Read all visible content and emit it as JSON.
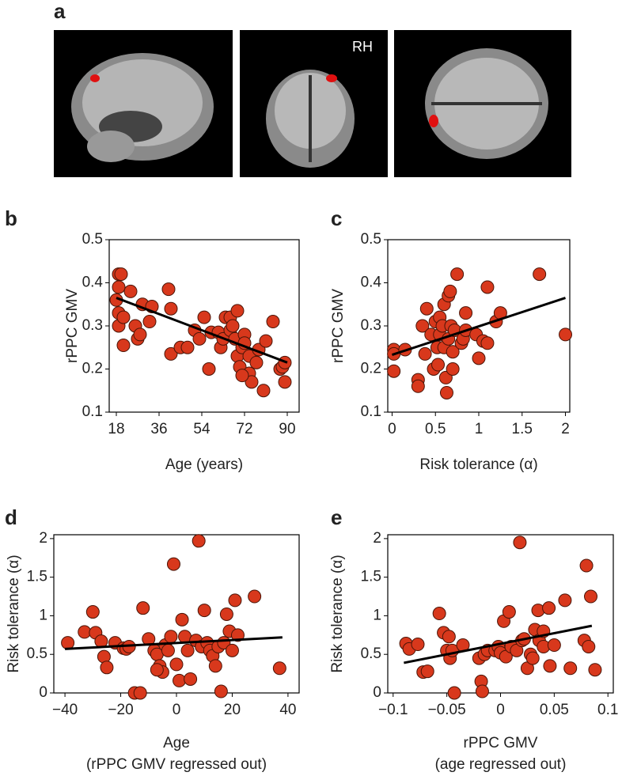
{
  "images": {
    "panel": "a",
    "label": "RH"
  },
  "chart_data": [
    {
      "type": "scatter",
      "panel": "b",
      "xlabel": "Age (years)",
      "ylabel": "rPPC GMV",
      "color": "#d8381c",
      "xlim": [
        15,
        95
      ],
      "ylim": [
        0.1,
        0.5
      ],
      "xticks": [
        18,
        36,
        54,
        72,
        90
      ],
      "yticks": [
        0.1,
        0.2,
        0.3,
        0.4,
        0.5
      ],
      "x": [
        19,
        20,
        19,
        18,
        19,
        19,
        21,
        21,
        24,
        26,
        27,
        28,
        29,
        32,
        33,
        40,
        41,
        41,
        45,
        48,
        51,
        53,
        55,
        57,
        58,
        61,
        62,
        63,
        64,
        66,
        66,
        67,
        68,
        69,
        69,
        70,
        71,
        72,
        72,
        74,
        74,
        75,
        77,
        78,
        80,
        81,
        84,
        87,
        88,
        89,
        89,
        71
      ],
      "values": [
        0.42,
        0.42,
        0.39,
        0.36,
        0.33,
        0.3,
        0.32,
        0.255,
        0.38,
        0.3,
        0.27,
        0.28,
        0.35,
        0.31,
        0.345,
        0.385,
        0.34,
        0.235,
        0.25,
        0.25,
        0.29,
        0.27,
        0.32,
        0.2,
        0.285,
        0.285,
        0.25,
        0.27,
        0.32,
        0.29,
        0.32,
        0.3,
        0.27,
        0.335,
        0.23,
        0.205,
        0.25,
        0.28,
        0.26,
        0.23,
        0.19,
        0.17,
        0.215,
        0.245,
        0.15,
        0.265,
        0.31,
        0.2,
        0.205,
        0.215,
        0.17,
        0.185
      ],
      "trend_line": {
        "x": [
          18,
          90
        ],
        "values": [
          0.365,
          0.215
        ]
      }
    },
    {
      "type": "scatter",
      "panel": "c",
      "xlabel": "Risk tolerance (α)",
      "ylabel": "rPPC GMV",
      "color": "#d8381c",
      "xlim": [
        -0.05,
        2.05
      ],
      "ylim": [
        0.1,
        0.5
      ],
      "xticks": [
        0,
        0.5,
        1,
        1.5,
        2
      ],
      "yticks": [
        0.1,
        0.2,
        0.3,
        0.4,
        0.5
      ],
      "x": [
        0.02,
        0.02,
        0.02,
        0.15,
        0.3,
        0.3,
        0.35,
        0.38,
        0.4,
        0.45,
        0.48,
        0.5,
        0.52,
        0.53,
        0.55,
        0.55,
        0.58,
        0.6,
        0.6,
        0.62,
        0.63,
        0.65,
        0.65,
        0.67,
        0.68,
        0.7,
        0.7,
        0.72,
        0.75,
        0.8,
        0.82,
        0.85,
        0.85,
        0.97,
        1.0,
        1.05,
        1.1,
        1.1,
        1.2,
        1.25,
        1.7,
        2.0
      ],
      "values": [
        0.245,
        0.235,
        0.195,
        0.245,
        0.175,
        0.16,
        0.3,
        0.235,
        0.34,
        0.28,
        0.2,
        0.31,
        0.25,
        0.21,
        0.32,
        0.28,
        0.3,
        0.35,
        0.25,
        0.18,
        0.145,
        0.37,
        0.27,
        0.38,
        0.3,
        0.24,
        0.2,
        0.29,
        0.42,
        0.26,
        0.27,
        0.33,
        0.29,
        0.28,
        0.225,
        0.265,
        0.39,
        0.26,
        0.31,
        0.33,
        0.42,
        0.28
      ],
      "trend_line": {
        "x": [
          0,
          2
        ],
        "values": [
          0.233,
          0.365
        ]
      }
    },
    {
      "type": "scatter",
      "panel": "d",
      "xlabel": [
        "Age",
        "(rPPC GMV regressed out)"
      ],
      "ylabel": "Risk tolerance (α)",
      "color": "#d8381c",
      "xlim": [
        -44,
        44
      ],
      "ylim": [
        0,
        2.05
      ],
      "xticks": [
        {
          "value": -40,
          "label": "−40"
        },
        {
          "value": -20,
          "label": "−20"
        },
        0,
        20,
        40
      ],
      "yticks": [
        0,
        0.5,
        1,
        1.5,
        2
      ],
      "x": [
        -39,
        -33,
        -30,
        -29,
        -27,
        -26,
        -25,
        -22,
        -19,
        -18,
        -17,
        -15,
        -13,
        -12,
        -10,
        -8,
        -7,
        -6,
        -5,
        -4,
        -3,
        -2,
        -1,
        0,
        1,
        2,
        3,
        4,
        7,
        8,
        9,
        10,
        11,
        12,
        13,
        14,
        15,
        16,
        17,
        18,
        19,
        20,
        21,
        22,
        28,
        37,
        5,
        -7
      ],
      "values": [
        0.65,
        0.79,
        1.05,
        0.78,
        0.67,
        0.47,
        0.33,
        0.65,
        0.58,
        0.57,
        0.6,
        0,
        0,
        1.1,
        0.7,
        0.55,
        0.5,
        0.35,
        0.27,
        0.62,
        0.55,
        0.73,
        1.67,
        0.37,
        0.16,
        0.95,
        0.73,
        0.55,
        0.68,
        1.97,
        0.6,
        1.07,
        0.65,
        0.55,
        0.48,
        0.35,
        0.6,
        0.02,
        0.65,
        1.02,
        0.8,
        0.55,
        1.2,
        0.75,
        1.25,
        0.32,
        0.18,
        0.3
      ],
      "trend_line": {
        "x": [
          -40,
          38
        ],
        "values": [
          0.57,
          0.72
        ]
      }
    },
    {
      "type": "scatter",
      "panel": "e",
      "xlabel": [
        "rPPC GMV",
        "(age regressed out)"
      ],
      "ylabel": "Risk tolerance (α)",
      "color": "#d8381c",
      "xlim": [
        -0.105,
        0.105
      ],
      "ylim": [
        0,
        2.05
      ],
      "xticks": [
        {
          "value": -0.1,
          "label": "−0.1"
        },
        {
          "value": -0.05,
          "label": "−0.05"
        },
        0,
        0.05,
        0.1
      ],
      "yticks": [
        0,
        0.5,
        1,
        1.5,
        2
      ],
      "x": [
        -0.088,
        -0.085,
        -0.077,
        -0.072,
        -0.068,
        -0.057,
        -0.053,
        -0.05,
        -0.048,
        -0.047,
        -0.045,
        -0.043,
        -0.035,
        -0.02,
        -0.018,
        -0.017,
        -0.015,
        -0.012,
        -0.005,
        -0.002,
        0,
        0.003,
        0.005,
        0.008,
        0.01,
        0.015,
        0.018,
        0.02,
        0.022,
        0.025,
        0.028,
        0.03,
        0.032,
        0.035,
        0.036,
        0.04,
        0.045,
        0.046,
        0.05,
        0.06,
        0.065,
        0.078,
        0.08,
        0.082,
        0.084,
        0.088,
        0.04
      ],
      "values": [
        0.64,
        0.57,
        0.63,
        0.27,
        0.28,
        1.03,
        0.78,
        0.55,
        0.73,
        0.45,
        0.55,
        0,
        0.62,
        0.45,
        0.15,
        0.02,
        0.5,
        0.55,
        0.55,
        0.6,
        0.52,
        0.93,
        0.47,
        1.05,
        0.6,
        0.55,
        1.95,
        0.68,
        0.7,
        0.32,
        0.5,
        0.45,
        0.82,
        1.07,
        0.68,
        0.6,
        1.1,
        0.35,
        0.62,
        1.2,
        0.32,
        0.68,
        1.65,
        0.6,
        1.25,
        0.3,
        0.8
      ],
      "trend_line": {
        "x": [
          -0.09,
          0.085
        ],
        "values": [
          0.39,
          0.87
        ]
      }
    }
  ]
}
